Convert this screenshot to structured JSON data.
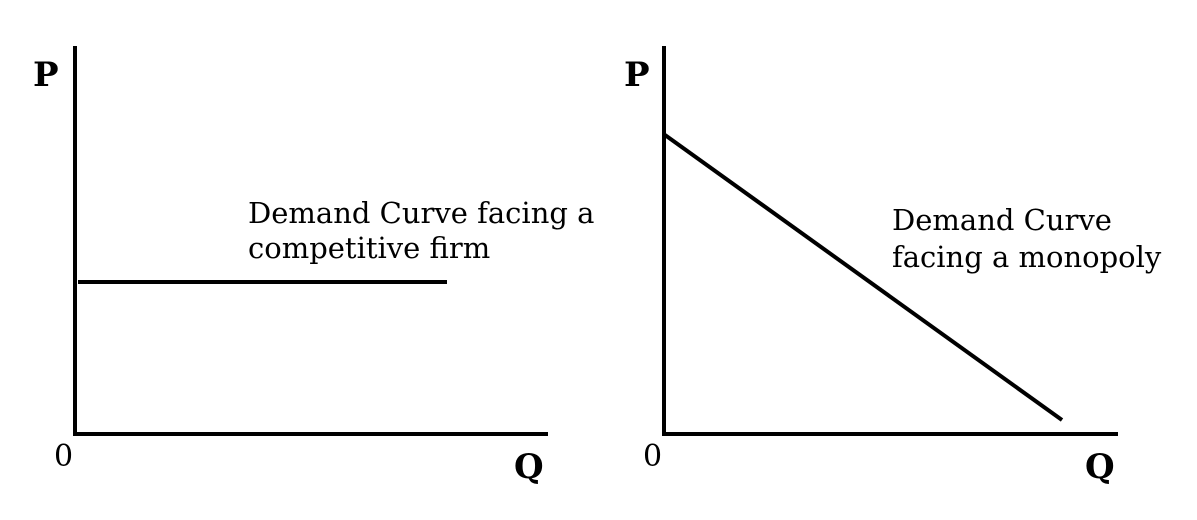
{
  "left_panel": {
    "y_axis_label": "P",
    "x_axis_label": "Q",
    "origin_label": "0",
    "caption_line1": "Demand Curve facing a",
    "caption_line2": "competitive firm"
  },
  "right_panel": {
    "y_axis_label": "P",
    "x_axis_label": "Q",
    "origin_label": "0",
    "caption_line1": "Demand Curve",
    "caption_line2": "facing a monopoly"
  }
}
